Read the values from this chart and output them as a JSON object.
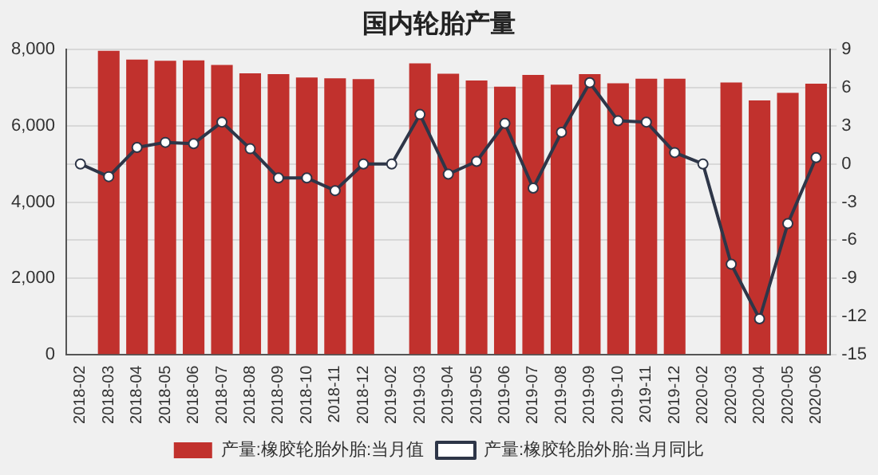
{
  "chart_data": {
    "type": "bar",
    "title": "国内轮胎产量",
    "categories": [
      "2018-02",
      "2018-03",
      "2018-04",
      "2018-05",
      "2018-06",
      "2018-07",
      "2018-08",
      "2018-09",
      "2018-10",
      "2018-11",
      "2018-12",
      "2019-02",
      "2019-03",
      "2019-04",
      "2019-05",
      "2019-06",
      "2019-07",
      "2019-08",
      "2019-09",
      "2019-10",
      "2019-11",
      "2019-12",
      "2020-02",
      "2020-03",
      "2020-04",
      "2020-05",
      "2020-06"
    ],
    "series": [
      {
        "name": "产量:橡胶轮胎外胎:当月值",
        "color": "#c1312d",
        "values": [
          null,
          7970,
          7740,
          7710,
          7720,
          7600,
          7380,
          7360,
          7270,
          7250,
          7230,
          null,
          7640,
          7370,
          7190,
          7030,
          7340,
          7080,
          7360,
          7120,
          7240,
          7240,
          null,
          7140,
          6670,
          6870,
          7110
        ]
      },
      {
        "name": "产量:橡胶轮胎外胎:当月同比",
        "type": "line",
        "axis": "y2",
        "color": "#2e3648",
        "values": [
          0,
          -1,
          1.3,
          1.7,
          1.6,
          3.3,
          1.2,
          -1.1,
          -1.1,
          -2.1,
          0,
          0,
          3.9,
          -0.8,
          0.2,
          3.2,
          -1.9,
          2.5,
          6.4,
          3.4,
          3.3,
          0.9,
          0,
          -7.9,
          -12.2,
          -4.7,
          0.5
        ]
      }
    ],
    "ylim": [
      0,
      8000
    ],
    "yticks": [
      {
        "value": 0,
        "label": "0"
      },
      {
        "value": 2000,
        "label": "2,000"
      },
      {
        "value": 4000,
        "label": "4,000"
      },
      {
        "value": 6000,
        "label": "6,000"
      },
      {
        "value": 8000,
        "label": "8,000"
      }
    ],
    "y2lim": [
      -15,
      9
    ],
    "y2ticks": [
      -15,
      -12,
      -9,
      -6,
      -3,
      0,
      3,
      6,
      9
    ],
    "grid": "y2",
    "legend": "bottom",
    "marker": "circle"
  }
}
